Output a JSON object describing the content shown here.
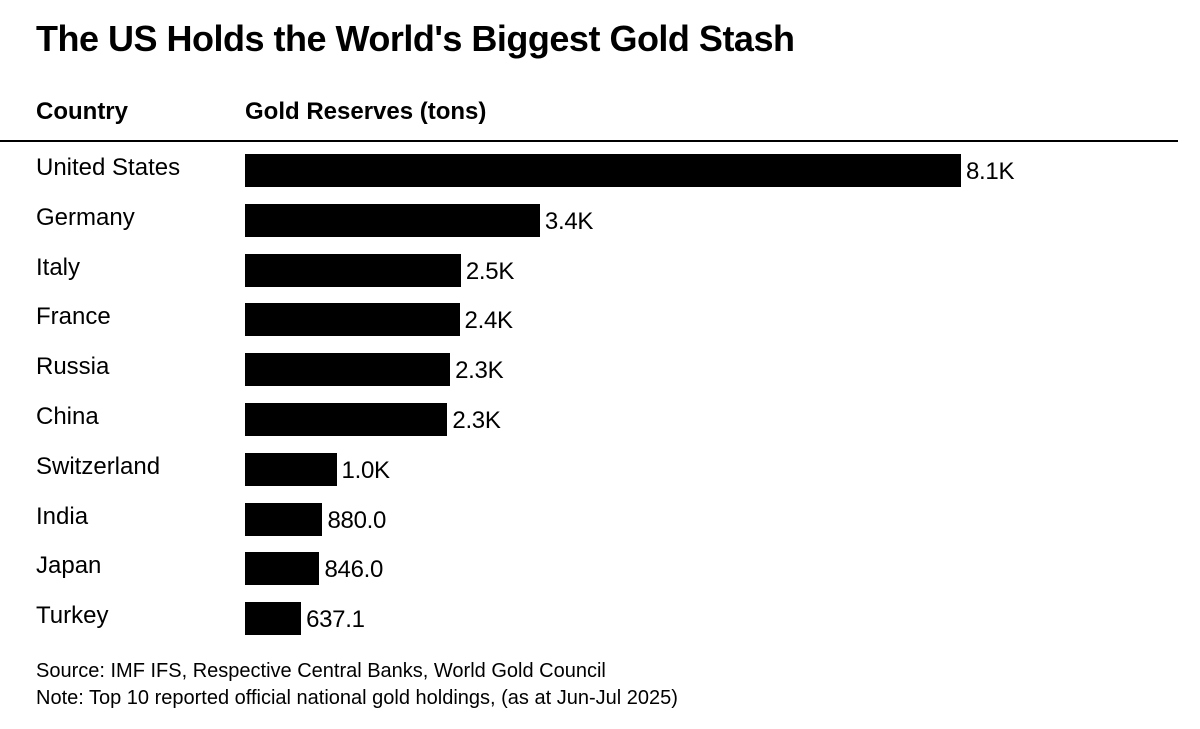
{
  "chart_data": {
    "type": "bar",
    "orientation": "horizontal",
    "title": "The US Holds the World's Biggest Gold Stash",
    "category_header": "Country",
    "value_header": "Gold Reserves (tons)",
    "categories": [
      "United States",
      "Germany",
      "Italy",
      "France",
      "Russia",
      "China",
      "Switzerland",
      "India",
      "Japan",
      "Turkey"
    ],
    "values": [
      8133,
      3350,
      2452,
      2437,
      2330,
      2299,
      1040,
      880.0,
      846.0,
      637.1
    ],
    "value_labels": [
      "8.1K",
      "3.4K",
      "2.5K",
      "2.4K",
      "2.3K",
      "2.3K",
      "1.0K",
      "880.0",
      "846.0",
      "637.1"
    ],
    "bar_color": "#000000"
  },
  "footer": {
    "source": "Source: IMF IFS, Respective Central Banks, World Gold Council",
    "note": "Note: Top 10 reported official national gold holdings, (as at Jun-Jul 2025)"
  }
}
